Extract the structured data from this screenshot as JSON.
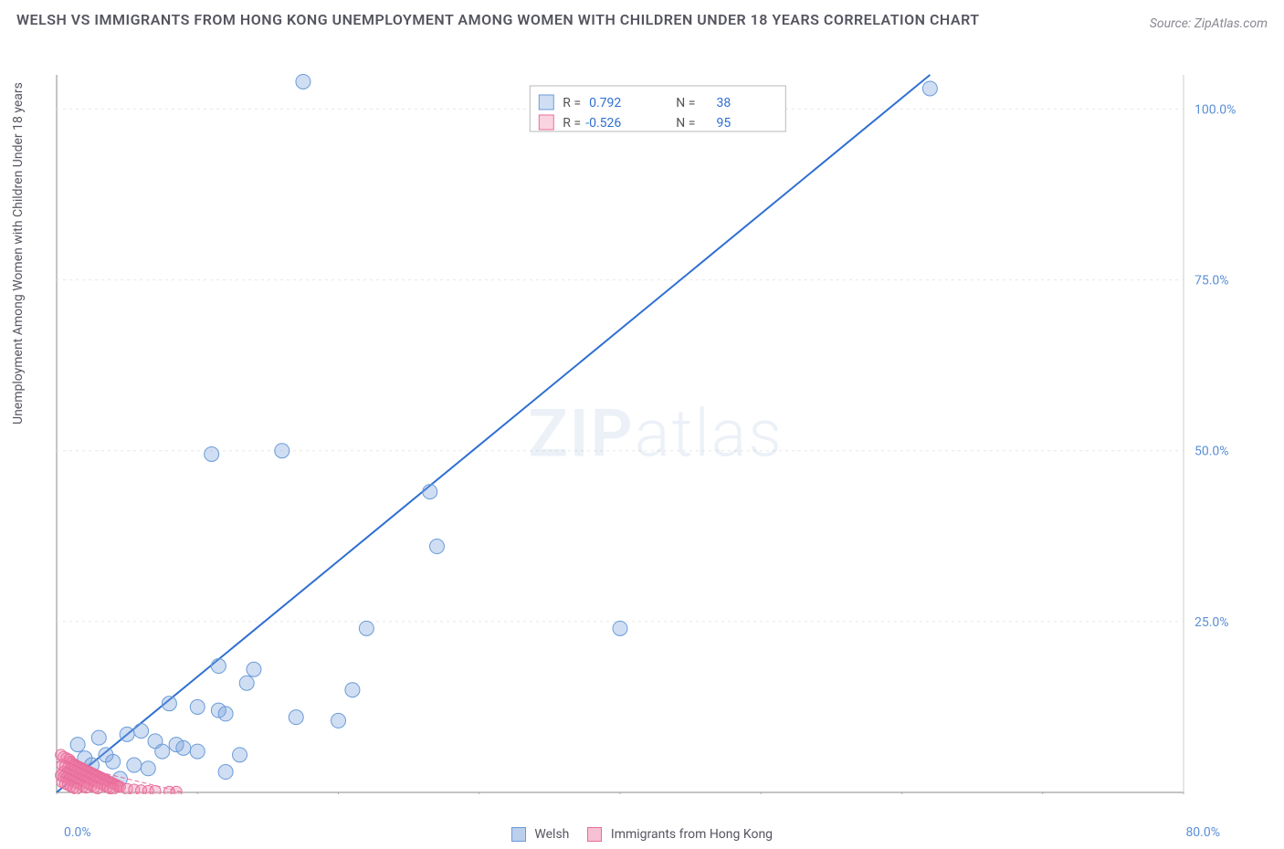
{
  "title": "WELSH VS IMMIGRANTS FROM HONG KONG UNEMPLOYMENT AMONG WOMEN WITH CHILDREN UNDER 18 YEARS CORRELATION CHART",
  "source_label": "Source: ZipAtlas.com",
  "watermark_zip": "ZIP",
  "watermark_atlas": "atlas",
  "y_axis_label": "Unemployment Among Women with Children Under 18 years",
  "chart": {
    "type": "scatter",
    "background_color": "#ffffff",
    "grid_color": "#e8e8e8",
    "border_color": "#cccccc",
    "plot": {
      "x_min": 0,
      "x_max": 80,
      "y_min": 0,
      "y_max": 105,
      "x_ticks": [
        0,
        10,
        20,
        30,
        40,
        50,
        60,
        70,
        80
      ],
      "y_ticks": [
        25,
        50,
        75,
        100
      ],
      "y_tick_labels": [
        "25.0%",
        "50.0%",
        "75.0%",
        "100.0%"
      ],
      "x_start_label": "0.0%",
      "x_end_label": "80.0%",
      "y_tick_color": "#5b8fd6",
      "tick_fontsize": 14
    },
    "series": [
      {
        "name": "Welsh",
        "color_fill": "rgba(120,160,220,0.35)",
        "color_stroke": "#6a9bd8",
        "marker_radius": 8,
        "trend_line_color": "#2e6fd0",
        "trend_line_width": 2,
        "R": "0.792",
        "N": "38",
        "trend": {
          "x1": 0,
          "y1": 0,
          "x2": 62,
          "y2": 105
        },
        "points": [
          [
            17.5,
            104
          ],
          [
            62,
            103
          ],
          [
            11,
            49.5
          ],
          [
            16,
            50
          ],
          [
            26.5,
            44
          ],
          [
            27,
            36
          ],
          [
            22,
            24
          ],
          [
            11.5,
            18.5
          ],
          [
            14,
            18
          ],
          [
            13.5,
            16
          ],
          [
            21,
            15
          ],
          [
            8,
            13
          ],
          [
            10,
            12.5
          ],
          [
            11.5,
            12
          ],
          [
            12,
            11.5
          ],
          [
            17,
            11
          ],
          [
            20,
            10.5
          ],
          [
            3,
            8
          ],
          [
            5,
            8.5
          ],
          [
            6,
            9
          ],
          [
            7,
            7.5
          ],
          [
            8.5,
            7
          ],
          [
            9,
            6.5
          ],
          [
            10,
            6
          ],
          [
            13,
            5.5
          ],
          [
            2,
            5
          ],
          [
            3.5,
            5.5
          ],
          [
            4,
            4.5
          ],
          [
            5.5,
            4
          ],
          [
            6.5,
            3.5
          ],
          [
            12,
            3
          ],
          [
            7.5,
            6
          ],
          [
            1,
            3
          ],
          [
            2,
            2.5
          ],
          [
            2.5,
            4
          ],
          [
            4.5,
            2
          ],
          [
            1.5,
            7
          ],
          [
            40,
            24
          ]
        ]
      },
      {
        "name": "Immigrants from Hong Kong",
        "color_fill": "rgba(240,130,170,0.35)",
        "color_stroke": "#e86d9a",
        "marker_radius": 6,
        "trend_line_color": "#e86d9a",
        "trend_line_width": 1,
        "trend_dash": "5,3",
        "R": "-0.526",
        "N": "95",
        "trend": {
          "x1": 0,
          "y1": 4.5,
          "x2": 9,
          "y2": 0
        },
        "points": [
          [
            0.3,
            5.5
          ],
          [
            0.5,
            5.2
          ],
          [
            0.7,
            5.0
          ],
          [
            0.9,
            4.8
          ],
          [
            1.0,
            4.5
          ],
          [
            1.1,
            4.3
          ],
          [
            1.2,
            4.1
          ],
          [
            1.3,
            4.0
          ],
          [
            1.4,
            3.9
          ],
          [
            1.5,
            3.8
          ],
          [
            1.6,
            3.7
          ],
          [
            1.7,
            3.6
          ],
          [
            1.8,
            3.5
          ],
          [
            1.9,
            3.4
          ],
          [
            2.0,
            3.3
          ],
          [
            2.1,
            3.2
          ],
          [
            2.2,
            3.1
          ],
          [
            2.3,
            3.0
          ],
          [
            2.4,
            2.9
          ],
          [
            2.5,
            2.8
          ],
          [
            2.6,
            2.7
          ],
          [
            2.7,
            2.6
          ],
          [
            2.8,
            2.5
          ],
          [
            2.9,
            2.4
          ],
          [
            3.0,
            2.3
          ],
          [
            3.1,
            2.2
          ],
          [
            3.2,
            2.1
          ],
          [
            3.3,
            2.0
          ],
          [
            3.4,
            1.9
          ],
          [
            3.5,
            1.8
          ],
          [
            3.6,
            1.7
          ],
          [
            3.7,
            1.6
          ],
          [
            3.8,
            1.5
          ],
          [
            3.9,
            1.4
          ],
          [
            4.0,
            1.3
          ],
          [
            4.1,
            1.2
          ],
          [
            4.2,
            1.1
          ],
          [
            4.3,
            1.0
          ],
          [
            4.4,
            0.9
          ],
          [
            4.5,
            0.8
          ],
          [
            0.4,
            4.0
          ],
          [
            0.6,
            3.8
          ],
          [
            0.8,
            3.6
          ],
          [
            1.0,
            3.4
          ],
          [
            1.2,
            3.2
          ],
          [
            1.4,
            3.0
          ],
          [
            1.6,
            2.8
          ],
          [
            1.8,
            2.6
          ],
          [
            2.0,
            2.4
          ],
          [
            2.2,
            2.2
          ],
          [
            2.4,
            2.0
          ],
          [
            2.6,
            1.8
          ],
          [
            2.8,
            1.6
          ],
          [
            3.0,
            1.4
          ],
          [
            3.2,
            1.2
          ],
          [
            3.4,
            1.0
          ],
          [
            3.6,
            0.8
          ],
          [
            3.8,
            0.6
          ],
          [
            4.0,
            0.5
          ],
          [
            0.5,
            3.0
          ],
          [
            0.7,
            2.8
          ],
          [
            0.9,
            2.6
          ],
          [
            1.1,
            2.4
          ],
          [
            1.3,
            2.2
          ],
          [
            1.5,
            2.0
          ],
          [
            1.7,
            1.8
          ],
          [
            1.9,
            1.6
          ],
          [
            2.1,
            1.4
          ],
          [
            2.3,
            1.2
          ],
          [
            2.5,
            1.0
          ],
          [
            2.7,
            0.8
          ],
          [
            2.9,
            0.6
          ],
          [
            0.3,
            2.5
          ],
          [
            0.5,
            2.3
          ],
          [
            0.7,
            2.1
          ],
          [
            0.9,
            1.9
          ],
          [
            1.1,
            1.7
          ],
          [
            1.3,
            1.5
          ],
          [
            1.5,
            1.3
          ],
          [
            1.7,
            1.1
          ],
          [
            1.9,
            0.9
          ],
          [
            2.1,
            0.7
          ],
          [
            0.4,
            1.5
          ],
          [
            0.6,
            1.3
          ],
          [
            0.8,
            1.1
          ],
          [
            1.0,
            0.9
          ],
          [
            1.2,
            0.7
          ],
          [
            1.4,
            0.5
          ],
          [
            5.0,
            0.5
          ],
          [
            5.5,
            0.4
          ],
          [
            6.0,
            0.3
          ],
          [
            6.5,
            0.2
          ],
          [
            7.0,
            0.2
          ],
          [
            8.0,
            0.1
          ],
          [
            8.5,
            0.1
          ]
        ]
      }
    ],
    "legend_box": {
      "r_label": "R =",
      "n_label": "N =",
      "value_color": "#2e6fd0",
      "border_color": "#b8b8b8",
      "bg_color": "#ffffff"
    },
    "bottom_legend": {
      "items": [
        {
          "label": "Welsh",
          "fill": "rgba(120,160,220,0.5)",
          "stroke": "#6a9bd8"
        },
        {
          "label": "Immigrants from Hong Kong",
          "fill": "rgba(240,130,170,0.5)",
          "stroke": "#e86d9a"
        }
      ]
    }
  }
}
